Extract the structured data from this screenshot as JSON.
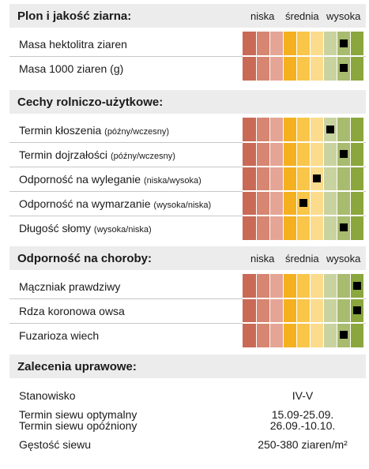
{
  "scale_colors": [
    "#c96a57",
    "#d68671",
    "#e4a596",
    "#f5b01f",
    "#f9c649",
    "#fbdc8d",
    "#c9d3a0",
    "#a9bb6f",
    "#8aa63d"
  ],
  "scale_labels": {
    "low": "niska",
    "mid": "średnia",
    "high": "wysoka"
  },
  "sections": {
    "plon": {
      "title": "Plon i jakość ziarna:",
      "rows": [
        {
          "label": "Masa hektolitra ziaren",
          "hint": "",
          "rating": 7
        },
        {
          "label": "Masa 1000 ziaren (g)",
          "hint": "",
          "rating": 7
        }
      ]
    },
    "cechy": {
      "title": "Cechy rolniczo-użytkowe:",
      "rows": [
        {
          "label": "Termin kłoszenia",
          "hint": "(późny/wczesny)",
          "rating": 6
        },
        {
          "label": "Termin dojrzałości",
          "hint": "(późny/wczesny)",
          "rating": 7
        },
        {
          "label": "Odporność na wyleganie",
          "hint": "(niska/wysoka)",
          "rating": 5
        },
        {
          "label": "Odporność na wymarzanie",
          "hint": "(wysoka/niska)",
          "rating": 4
        },
        {
          "label": "Długość słomy",
          "hint": "(wysoka/niska)",
          "rating": 7
        }
      ]
    },
    "choroby": {
      "title": "Odporność na choroby:",
      "rows": [
        {
          "label": "Mączniak prawdziwy",
          "hint": "",
          "rating": 8
        },
        {
          "label": "Rdza koronowa owsa",
          "hint": "",
          "rating": 8
        },
        {
          "label": "Fuzarioza wiech",
          "hint": "",
          "rating": 7
        }
      ]
    },
    "zalecenia": {
      "title": "Zalecenia uprawowe:",
      "stanowisko_label": "Stanowisko",
      "stanowisko_value": "IV-V",
      "termin_opt_label": "Termin siewu optymalny",
      "termin_opt_value": "15.09-25.09.",
      "termin_opozn_label": "Termin siewu opóźniony",
      "termin_opozn_value": "26.09.-10.10.",
      "gestosc_label": "Gęstość siewu",
      "gestosc_value": "250-380 ziaren/m²"
    }
  }
}
